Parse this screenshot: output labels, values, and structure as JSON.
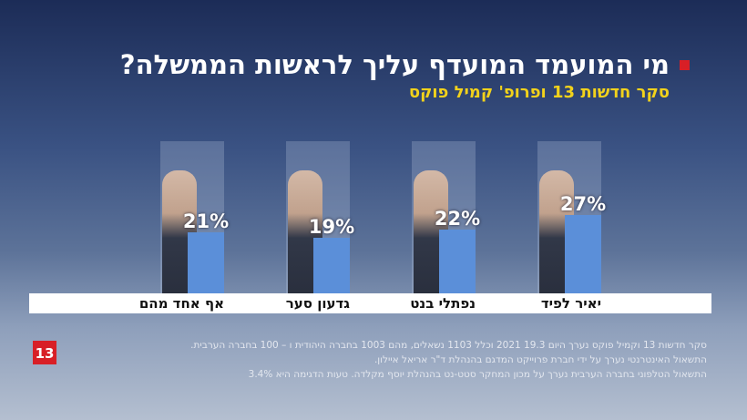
{
  "chart_data": {
    "type": "bar",
    "title": "מי המועמד המועדף עליך לראשות הממשלה?",
    "subtitle": "סקר חדשות 13 ופרופ' קמיל פוקס",
    "categories": [
      "יאיר לפיד",
      "נפתלי בנט",
      "גדעון סער",
      "אף אחד מהם"
    ],
    "values": [
      27,
      22,
      19,
      21
    ],
    "value_labels": [
      "27%",
      "22%",
      "19%",
      "21%"
    ],
    "color": "#5b8fd9",
    "notes": [
      "סקר חדשות 13 וקמיל פוקס נערך היום 19.3 2021 וכלל 1103 נשאלים, מהם 1003 בחברה היהודית ו – 100 בחברה הערבית.",
      "התשאול האינטרנטי נערך על ידי חברת פרוייקט המדגם בהנהלת ד\"ר אריאל איילון.",
      "התשאול הטלפוני בחברה הערבית נערך על מכון המחקר סטט-נט בהנהלת יוסף מקלדה. טעות הדגימה היא 3.4%"
    ],
    "logo": "13"
  }
}
